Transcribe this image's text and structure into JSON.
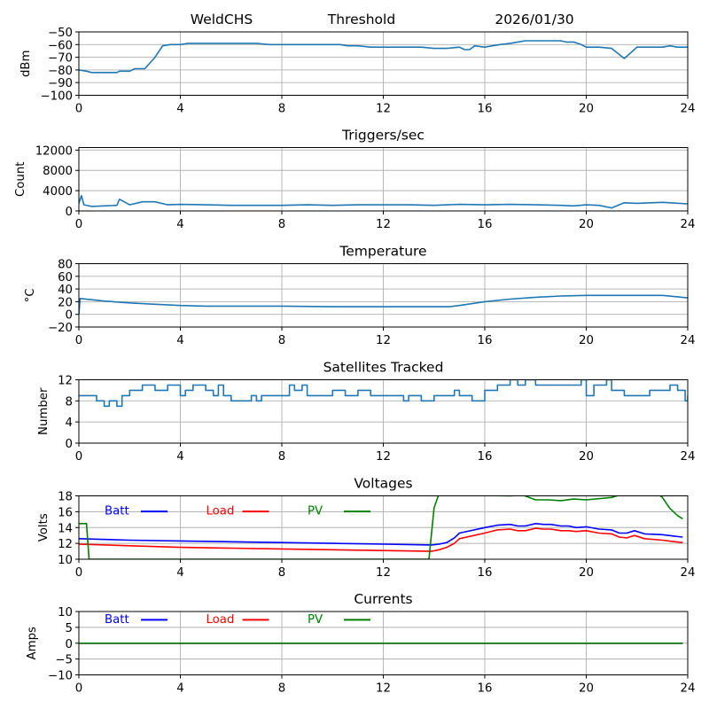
{
  "header": {
    "station": "WeldCHS",
    "mode": "Threshold",
    "date": "2026/01/30"
  },
  "chart_data": [
    {
      "id": "signal",
      "type": "line",
      "title": "",
      "xlabel": "",
      "ylabel": "dBm",
      "xlim": [
        0,
        24
      ],
      "ylim": [
        -100,
        -50
      ],
      "xticks": [
        0,
        4,
        8,
        12,
        16,
        20,
        24
      ],
      "yticks": [
        -100,
        -90,
        -80,
        -70,
        -60,
        -50
      ],
      "grid": true,
      "series": [
        {
          "name": "dBm",
          "color": "#1f77b4",
          "x": [
            0,
            0.3,
            0.5,
            1,
            1.5,
            1.6,
            2,
            2.2,
            2.6,
            3,
            3.3,
            3.6,
            4,
            4.3,
            4.6,
            5,
            5.5,
            6,
            6.5,
            7,
            7.5,
            8,
            8.5,
            9,
            9.5,
            10,
            10.3,
            10.6,
            11,
            11.5,
            12,
            12.5,
            13,
            13.5,
            14,
            14.3,
            14.5,
            15,
            15.2,
            15.4,
            15.6,
            16,
            16.3,
            16.6,
            17,
            17.3,
            17.6,
            18,
            18.5,
            19,
            19.2,
            19.5,
            19.8,
            20,
            20.5,
            21,
            21.5,
            22,
            22.5,
            23,
            23.3,
            23.6,
            24
          ],
          "y": [
            -80,
            -81,
            -82,
            -82,
            -82,
            -81,
            -81,
            -79,
            -79,
            -70,
            -61,
            -60,
            -60,
            -59,
            -59,
            -59,
            -59,
            -59,
            -59,
            -59,
            -60,
            -60,
            -60,
            -60,
            -60,
            -60,
            -60,
            -61,
            -61,
            -62,
            -62,
            -62,
            -62,
            -62,
            -63,
            -63,
            -63,
            -62,
            -64,
            -64,
            -61,
            -62,
            -61,
            -60,
            -59,
            -58,
            -57,
            -57,
            -57,
            -57,
            -58,
            -58,
            -60,
            -62,
            -62,
            -63,
            -71,
            -62,
            -62,
            -62,
            -61,
            -62,
            -62
          ]
        }
      ]
    },
    {
      "id": "triggers",
      "type": "line",
      "title": "Triggers/sec",
      "xlabel": "",
      "ylabel": "Count",
      "xlim": [
        0,
        24
      ],
      "ylim": [
        0,
        12500
      ],
      "xticks": [
        0,
        4,
        8,
        12,
        16,
        20,
        24
      ],
      "yticks": [
        0,
        4000,
        8000,
        12000
      ],
      "grid": true,
      "series": [
        {
          "name": "Count",
          "color": "#1f77b4",
          "x": [
            0,
            0.1,
            0.2,
            0.5,
            1,
            1.5,
            1.6,
            2,
            2.5,
            3,
            3.5,
            4,
            5,
            6,
            7,
            8,
            9,
            10,
            11,
            12,
            13,
            14,
            15,
            16,
            17,
            18,
            19,
            19.5,
            20,
            20.5,
            21,
            21.5,
            22,
            23,
            24
          ],
          "y": [
            1500,
            3000,
            1200,
            900,
            1000,
            1100,
            2300,
            1200,
            1800,
            1800,
            1200,
            1300,
            1200,
            1100,
            1100,
            1100,
            1200,
            1100,
            1200,
            1200,
            1200,
            1100,
            1300,
            1200,
            1300,
            1200,
            1100,
            1000,
            1200,
            1100,
            600,
            1600,
            1500,
            1700,
            1400
          ]
        }
      ]
    },
    {
      "id": "temperature",
      "type": "line",
      "title": "Temperature",
      "xlabel": "",
      "ylabel": "°C",
      "xlim": [
        0,
        24
      ],
      "ylim": [
        -20,
        80
      ],
      "xticks": [
        0,
        4,
        8,
        12,
        16,
        20,
        24
      ],
      "yticks": [
        -20,
        0,
        20,
        40,
        60,
        80
      ],
      "grid": true,
      "series": [
        {
          "name": "Temp",
          "color": "#1f77b4",
          "x": [
            0,
            0.05,
            1,
            2,
            3,
            4,
            5,
            6,
            8,
            10,
            12,
            14,
            14.6,
            15,
            16,
            17,
            18,
            19,
            20,
            21,
            22,
            23,
            23.5,
            24
          ],
          "y": [
            0,
            25,
            21,
            18,
            16,
            14,
            13,
            13,
            13,
            12,
            12,
            12,
            12,
            14,
            20,
            24,
            27,
            29,
            30,
            30,
            30,
            30,
            28,
            26
          ]
        }
      ]
    },
    {
      "id": "satellites",
      "type": "line",
      "title": "Satellites Tracked",
      "xlabel": "",
      "ylabel": "Number",
      "xlim": [
        0,
        24
      ],
      "ylim": [
        0,
        12
      ],
      "xticks": [
        0,
        4,
        8,
        12,
        16,
        20,
        24
      ],
      "yticks": [
        0,
        4,
        8,
        12
      ],
      "grid": true,
      "step": true,
      "series": [
        {
          "name": "Sats",
          "color": "#1f77b4",
          "x": [
            0,
            0.7,
            1,
            1.2,
            1.5,
            1.7,
            2,
            2.5,
            3,
            3.5,
            4,
            4.2,
            4.5,
            5,
            5.3,
            5.5,
            5.7,
            6,
            6.8,
            7,
            7.2,
            8,
            8.3,
            8.5,
            8.8,
            9,
            10,
            10.5,
            11,
            11.5,
            12,
            12.5,
            12.8,
            13,
            13.5,
            14,
            14.5,
            14.8,
            15,
            15.5,
            16,
            16.5,
            17,
            17.3,
            17.6,
            18,
            19,
            19.8,
            20,
            20.3,
            20.8,
            21,
            21.5,
            22.3,
            22.5,
            23,
            23.3,
            23.6,
            23.9,
            24
          ],
          "y": [
            9,
            8,
            7,
            8,
            7,
            9,
            10,
            11,
            10,
            11,
            9,
            10,
            11,
            10,
            9,
            11,
            9,
            8,
            9,
            8,
            9,
            9,
            11,
            10,
            11,
            9,
            10,
            9,
            10,
            9,
            9,
            9,
            8,
            9,
            8,
            9,
            9,
            10,
            9,
            8,
            10,
            11,
            12,
            11,
            12,
            11,
            11,
            12,
            9,
            11,
            12,
            10,
            9,
            9,
            10,
            10,
            11,
            10,
            8,
            9
          ]
        }
      ]
    },
    {
      "id": "voltages",
      "type": "line",
      "title": "Voltages",
      "xlabel": "",
      "ylabel": "Volts",
      "xlim": [
        0,
        24
      ],
      "ylim": [
        10,
        18
      ],
      "xticks": [
        0,
        4,
        8,
        12,
        16,
        20,
        24
      ],
      "yticks": [
        10,
        12,
        14,
        16,
        18
      ],
      "grid": true,
      "legend": {
        "placement": "inside-top-left",
        "entries": [
          "Batt",
          "Load",
          "PV"
        ]
      },
      "series": [
        {
          "name": "Batt",
          "color": "#0000ff",
          "x": [
            0,
            2,
            4,
            6,
            8,
            10,
            12,
            13.9,
            14.2,
            14.5,
            14.8,
            15,
            16,
            16.5,
            17,
            17.3,
            17.6,
            18,
            18.3,
            18.6,
            19,
            19.3,
            19.6,
            20,
            20.5,
            21,
            21.3,
            21.6,
            21.9,
            22.3,
            23,
            23.5,
            23.8
          ],
          "y": [
            12.6,
            12.4,
            12.3,
            12.2,
            12.1,
            12.0,
            11.9,
            11.8,
            11.9,
            12.1,
            12.7,
            13.3,
            14.0,
            14.3,
            14.4,
            14.2,
            14.2,
            14.5,
            14.4,
            14.4,
            14.2,
            14.2,
            14.0,
            14.1,
            13.8,
            13.7,
            13.3,
            13.3,
            13.6,
            13.2,
            13.1,
            12.9,
            12.8
          ]
        },
        {
          "name": "Load",
          "color": "#ff0000",
          "x": [
            0,
            2,
            4,
            6,
            8,
            10,
            12,
            13.9,
            14.2,
            14.5,
            14.8,
            15,
            16,
            16.5,
            17,
            17.3,
            17.6,
            18,
            18.3,
            18.6,
            19,
            19.3,
            19.6,
            20,
            20.5,
            21,
            21.3,
            21.6,
            21.9,
            22.3,
            23,
            23.5,
            23.8
          ],
          "y": [
            11.9,
            11.7,
            11.5,
            11.4,
            11.3,
            11.2,
            11.1,
            11.0,
            11.2,
            11.5,
            12.0,
            12.6,
            13.3,
            13.7,
            13.8,
            13.6,
            13.6,
            13.9,
            13.8,
            13.8,
            13.6,
            13.6,
            13.5,
            13.6,
            13.3,
            13.2,
            12.8,
            12.7,
            13.0,
            12.6,
            12.4,
            12.2,
            12.1
          ]
        },
        {
          "name": "PV",
          "color": "#008000",
          "x": [
            0,
            0.2,
            0.3,
            0.4,
            13.8,
            14.0,
            14.2,
            14.5,
            15,
            17,
            17.5,
            18,
            18.5,
            19,
            19.5,
            20,
            21,
            21.5,
            22,
            22.5,
            22.8,
            23,
            23.3,
            23.6,
            23.8
          ],
          "y": [
            14.5,
            14.5,
            14.5,
            10,
            10,
            16.5,
            18.3,
            18.3,
            18.1,
            18.0,
            18.1,
            17.5,
            17.5,
            17.4,
            17.6,
            17.5,
            17.8,
            18.3,
            18.3,
            18.3,
            18.3,
            17.8,
            16.4,
            15.5,
            15.1
          ]
        }
      ]
    },
    {
      "id": "currents",
      "type": "line",
      "title": "Currents",
      "xlabel": "",
      "ylabel": "Amps",
      "xlim": [
        0,
        24
      ],
      "ylim": [
        -10,
        10
      ],
      "xticks": [
        0,
        4,
        8,
        12,
        16,
        20,
        24
      ],
      "yticks": [
        -10,
        -5,
        0,
        5,
        10
      ],
      "grid": true,
      "legend": {
        "placement": "inside-top-left",
        "entries": [
          "Batt",
          "Load",
          "PV"
        ]
      },
      "series": [
        {
          "name": "Batt",
          "color": "#0000ff",
          "x": [
            0,
            23.8
          ],
          "y": [
            0,
            0
          ]
        },
        {
          "name": "Load",
          "color": "#ff0000",
          "x": [
            0,
            23.8
          ],
          "y": [
            0,
            0
          ]
        },
        {
          "name": "PV",
          "color": "#008000",
          "x": [
            0,
            23.8
          ],
          "y": [
            0,
            0
          ]
        }
      ]
    }
  ]
}
